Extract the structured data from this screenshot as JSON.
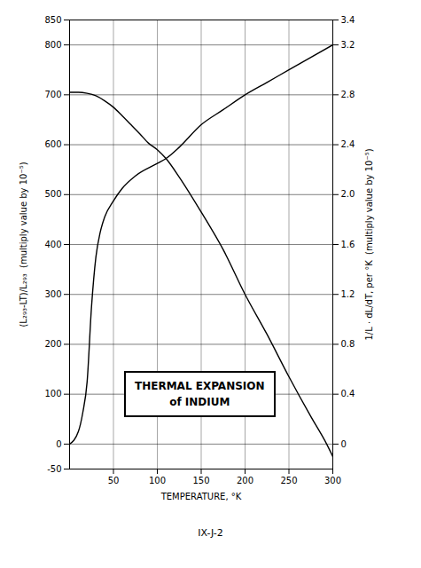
{
  "chart_data": {
    "type": "line",
    "title": "THERMAL EXPANSION\nof INDIUM",
    "caption": "IX-J-2",
    "x_label": "TEMPERATURE, °K",
    "y_label": "(L₂₉₃-LT)/L₂₉₃  (multiply value by 10⁻⁵)",
    "y2_label": "1/L · dL/dT, per °K  (multiply value by 10⁻⁵)",
    "xlim": [
      0,
      300
    ],
    "xticks": [
      50,
      100,
      150,
      200,
      250,
      300
    ],
    "ylim": [
      -50,
      850
    ],
    "yticks": [
      -50,
      0,
      100,
      200,
      300,
      400,
      500,
      600,
      700,
      800,
      850
    ],
    "y2lim": [
      -0.2,
      3.4
    ],
    "y2ticks": [
      0,
      0.4,
      0.8,
      1.2,
      1.6,
      {
        "value": 2,
        "label": "2.0"
      },
      2.4,
      2.8,
      3.2,
      3.4
    ],
    "grid": true,
    "series": [
      {
        "color": "#000000",
        "x": [
          0,
          10,
          20,
          30,
          40,
          50,
          60,
          70,
          80,
          90,
          100,
          110,
          125,
          150,
          175,
          200,
          225,
          250,
          275,
          293,
          300
        ],
        "values": [
          705,
          705,
          703,
          698,
          688,
          675,
          658,
          640,
          622,
          603,
          590,
          572,
          535,
          465,
          390,
          300,
          220,
          135,
          55,
          0,
          -25
        ]
      },
      {
        "color": "#000000",
        "axis": "y2",
        "x": [
          0,
          10,
          15,
          20,
          25,
          30,
          35,
          40,
          50,
          60,
          75,
          100,
          110,
          125,
          150,
          175,
          200,
          225,
          250,
          275,
          300
        ],
        "values": [
          0,
          0.1,
          0.25,
          0.5,
          1.1,
          1.5,
          1.7,
          1.82,
          1.95,
          2.05,
          2.15,
          2.25,
          2.29,
          2.38,
          2.56,
          2.68,
          2.8,
          2.9,
          3.0,
          3.1,
          3.2
        ]
      }
    ]
  }
}
